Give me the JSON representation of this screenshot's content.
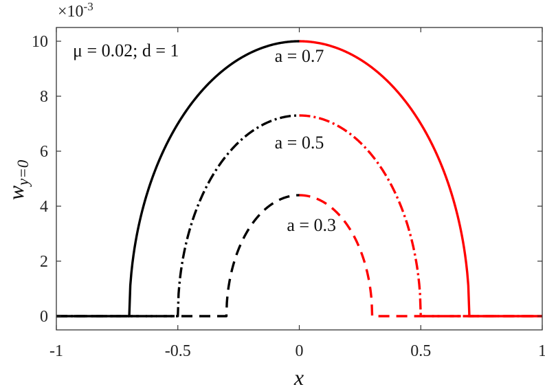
{
  "chart_data": {
    "type": "line",
    "xlabel_main": "x",
    "ylabel_main": "w",
    "ylabel_sub": "y=0",
    "multiplier_base": "×10",
    "multiplier_exp": "-3",
    "xlim": [
      -1,
      1
    ],
    "ylim": [
      -0.5,
      10.5
    ],
    "x_ticks": [
      -1,
      -0.5,
      0,
      0.5,
      1
    ],
    "x_tick_labels": [
      "-1",
      "-0.5",
      "0",
      "0.5",
      "1"
    ],
    "y_ticks": [
      0,
      2,
      4,
      6,
      8,
      10
    ],
    "y_tick_labels": [
      "0",
      "2",
      "4",
      "6",
      "8",
      "10"
    ],
    "grid": false,
    "params_label": "μ = 0.02; d = 1",
    "series": [
      {
        "label": "a = 0.7",
        "a": 0.7,
        "peak": 10.0,
        "dash": "solid",
        "label_x": 0.0,
        "label_y": 9.25
      },
      {
        "label": "a = 0.5",
        "a": 0.5,
        "peak": 7.3,
        "dash": "dashdot",
        "label_x": 0.0,
        "label_y": 6.1
      },
      {
        "label": "a = 0.3",
        "a": 0.3,
        "peak": 4.4,
        "dash": "dashed",
        "label_x": 0.05,
        "label_y": 3.1
      }
    ],
    "colors": {
      "left": "#000000",
      "right": "#ff0000",
      "axes": "#333333"
    }
  }
}
